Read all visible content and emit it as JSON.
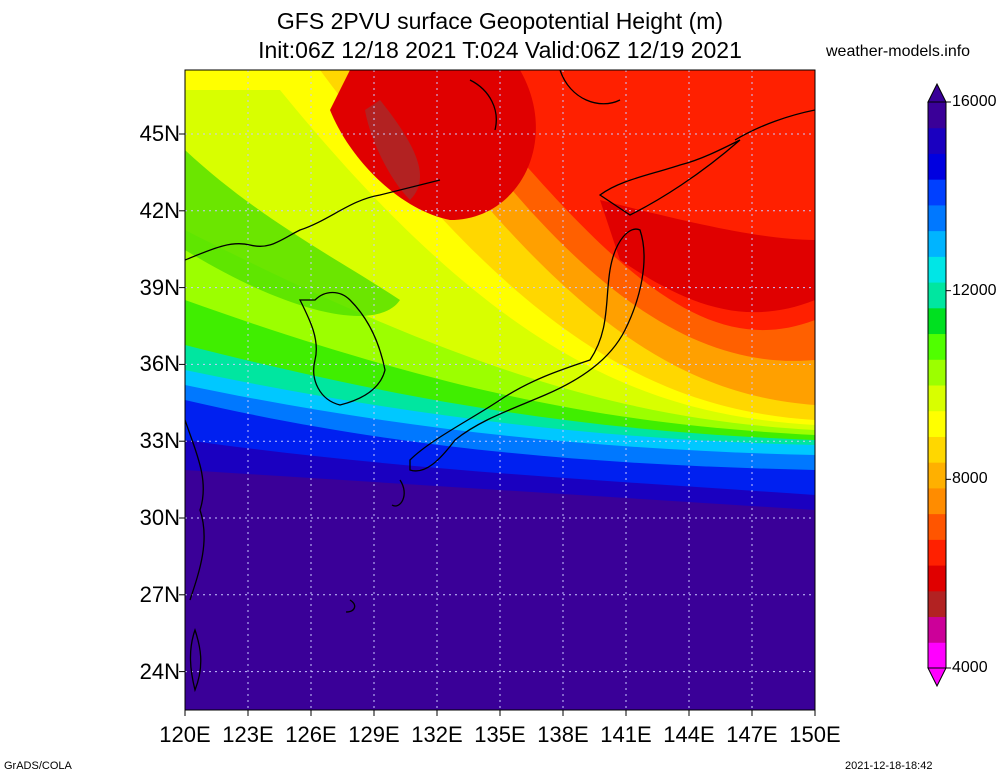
{
  "title": {
    "line1": "GFS 2PVU surface Geopotential Height (m)",
    "line2": "Init:06Z 12/18 2021 T:024 Valid:06Z 12/19 2021"
  },
  "credit": "weather-models.info",
  "footer": {
    "left": "GrADS/COLA",
    "right": "2021-12-18-18:42"
  },
  "map": {
    "lon_range": [
      120,
      150
    ],
    "lat_range": [
      22.5,
      47.5
    ],
    "x_ticks": [
      "120E",
      "123E",
      "126E",
      "129E",
      "132E",
      "135E",
      "138E",
      "141E",
      "144E",
      "147E",
      "150E"
    ],
    "y_ticks": [
      "24N",
      "27N",
      "30N",
      "33N",
      "36N",
      "39N",
      "42N",
      "45N"
    ],
    "grid": true
  },
  "colorbar": {
    "labels": [
      "16000",
      "12000",
      "8000",
      "4000"
    ],
    "range": [
      4000,
      16000
    ],
    "colors": [
      "#ff00ff",
      "#cc0099",
      "#b22222",
      "#e00000",
      "#ff2000",
      "#ff5500",
      "#ff8c00",
      "#ffb000",
      "#ffd700",
      "#ffff00",
      "#d8ff00",
      "#9cff00",
      "#50ff00",
      "#00e020",
      "#00e6a0",
      "#00e6e6",
      "#00b4ff",
      "#0078ff",
      "#0040ff",
      "#0000e0",
      "#1a00c0",
      "#3a0098"
    ]
  }
}
